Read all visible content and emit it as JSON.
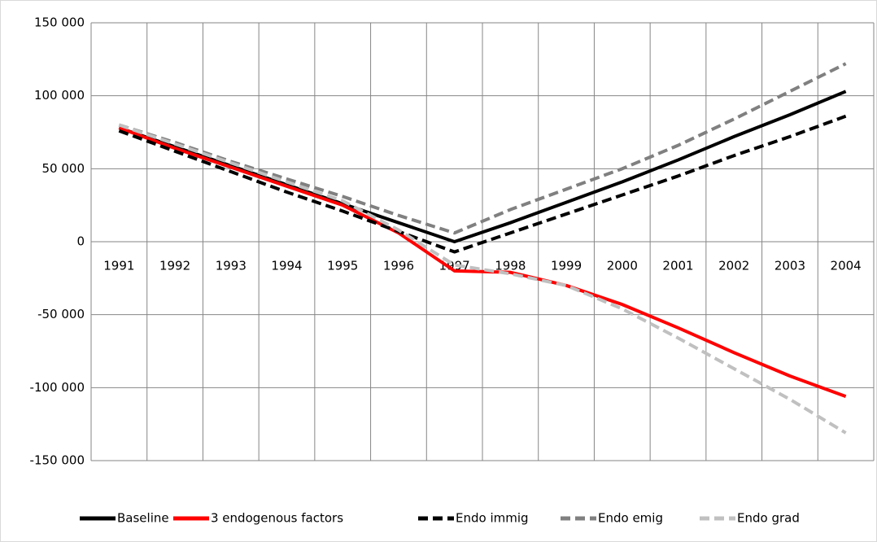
{
  "chart_data": {
    "type": "line",
    "categories": [
      "1991",
      "1992",
      "1993",
      "1994",
      "1995",
      "1996",
      "1997",
      "1998",
      "1999",
      "2000",
      "2001",
      "2002",
      "2003",
      "2004"
    ],
    "series": [
      {
        "name": "Baseline",
        "color": "#000000",
        "dashed": false,
        "values": [
          78000,
          65000,
          52000,
          39000,
          26000,
          13000,
          0,
          13000,
          27000,
          41000,
          56000,
          72000,
          87000,
          103000
        ]
      },
      {
        "name": "3 endogenous factors",
        "color": "#ff0000",
        "dashed": false,
        "values": [
          78000,
          64000,
          51000,
          38000,
          25000,
          6000,
          -20000,
          -21000,
          -30000,
          -43000,
          -59000,
          -76000,
          -92000,
          -106000
        ]
      },
      {
        "name": "Endo immig",
        "color": "#000000",
        "dashed": true,
        "values": [
          76000,
          62000,
          48000,
          34000,
          21000,
          7000,
          -7000,
          6000,
          19000,
          32000,
          45000,
          59000,
          72000,
          86000
        ]
      },
      {
        "name": "Endo emig",
        "color": "#808080",
        "dashed": true,
        "values": [
          80000,
          68000,
          55000,
          43000,
          31000,
          18000,
          6000,
          22000,
          36000,
          50000,
          66000,
          84000,
          103000,
          122000
        ]
      },
      {
        "name": "Endo grad",
        "color": "#c0c0c0",
        "dashed": true,
        "values": [
          80000,
          67000,
          54000,
          41000,
          28000,
          8000,
          -16000,
          -22000,
          -30000,
          -46000,
          -66000,
          -87000,
          -108000,
          -131000
        ]
      }
    ],
    "ylim": [
      -150000,
      150000
    ],
    "yticks": [
      {
        "value": -150000,
        "label": "-150 000"
      },
      {
        "value": -100000,
        "label": "-100 000"
      },
      {
        "value": -50000,
        "label": "-50 000"
      },
      0,
      {
        "value": 50000,
        "label": "50 000"
      },
      {
        "value": 100000,
        "label": "100 000"
      },
      {
        "value": 150000,
        "label": "150 000"
      }
    ],
    "grid": true,
    "legend": "bottom"
  }
}
